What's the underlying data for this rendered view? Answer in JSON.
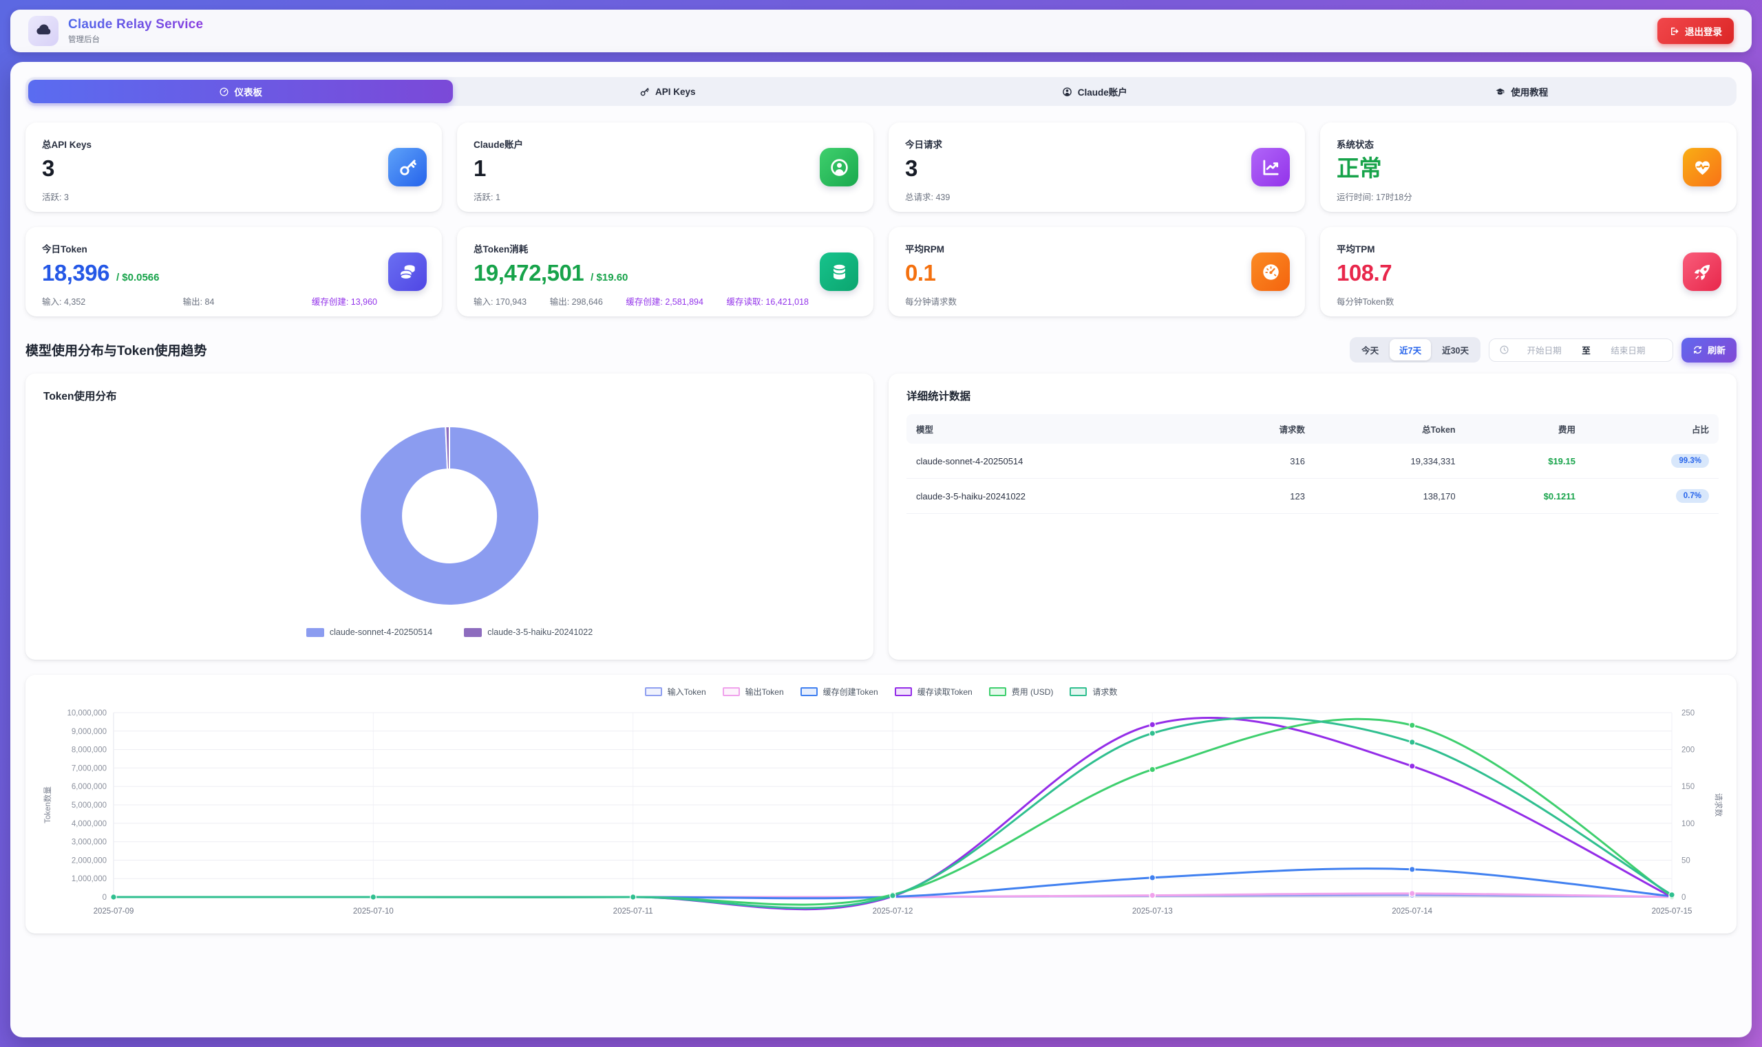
{
  "app": {
    "title": "Claude Relay Service",
    "subtitle": "管理后台",
    "logout_label": "退出登录"
  },
  "tabs": [
    {
      "label": "仪表板",
      "icon": "speedometer-icon",
      "active": true
    },
    {
      "label": "API Keys",
      "icon": "key-icon",
      "active": false
    },
    {
      "label": "Claude账户",
      "icon": "user-circle-icon",
      "active": false
    },
    {
      "label": "使用教程",
      "icon": "book-icon",
      "active": false
    }
  ],
  "stat_cards": [
    {
      "key": "api-keys",
      "label": "总API Keys",
      "value": "3",
      "value_color": "#161b26",
      "subs": [
        {
          "text": "活跃: 3"
        }
      ],
      "icon": "key-icon",
      "icon_bg": "linear-gradient(135deg,#5ea2f9,#2563eb)",
      "icon_accent": "#3b82f6"
    },
    {
      "key": "claude-accounts",
      "label": "Claude账户",
      "value": "1",
      "value_color": "#161b26",
      "subs": [
        {
          "text": "活跃: 1"
        }
      ],
      "icon": "user-circle-icon",
      "icon_bg": "linear-gradient(135deg,#3fd06d,#1aa94e)",
      "icon_accent": "#2dbd5d"
    },
    {
      "key": "requests-today",
      "label": "今日请求",
      "value": "3",
      "value_color": "#161b26",
      "subs": [
        {
          "text": "总请求: 439"
        }
      ],
      "icon": "chart-line-icon",
      "icon_bg": "linear-gradient(135deg,#b065f8,#9333ea)",
      "icon_accent": "#a34df2"
    },
    {
      "key": "system-status",
      "label": "系统状态",
      "value": "正常",
      "value_color": "#17a34a",
      "subs": [
        {
          "text": "运行时间: 17时18分"
        }
      ],
      "icon": "heart-pulse-icon",
      "icon_bg": "linear-gradient(135deg,#f9ae15,#f97316)",
      "icon_accent": "#f89110"
    },
    {
      "key": "tokens-today",
      "label": "今日Token",
      "value": "18,396",
      "value_color": "#2457e6",
      "value_suffix": "/ $0.0566",
      "subs": [
        {
          "text": "输入: 4,352"
        },
        {
          "text": "输出: 84"
        },
        {
          "text": "缓存创建: 13,960",
          "color": "#9333ea"
        }
      ],
      "icon": "coins-icon",
      "icon_bg": "linear-gradient(135deg,#6a6ff2,#5046e4)",
      "icon_accent": "#5a5ceb"
    },
    {
      "key": "tokens-total",
      "label": "总Token消耗",
      "value": "19,472,501",
      "value_color": "#17a34a",
      "value_suffix": "/ $19.60",
      "subs": [
        {
          "text": "输入: 170,943"
        },
        {
          "text": "输出: 298,646"
        },
        {
          "text": "缓存创建: 2,581,894",
          "color": "#9333ea"
        },
        {
          "text": "缓存读取: 16,421,018",
          "color": "#9333ea"
        }
      ],
      "icon": "database-icon",
      "icon_bg": "linear-gradient(135deg,#17c38c,#0ba56f)",
      "icon_accent": "#10b47c"
    },
    {
      "key": "avg-rpm",
      "label": "平均RPM",
      "value": "0.1",
      "value_color": "#f4700e",
      "subs": [
        {
          "text": "每分钟请求数"
        }
      ],
      "icon": "gauge-icon",
      "icon_bg": "linear-gradient(135deg,#fb8b24,#f4640e)",
      "icon_accent": "#f87818"
    },
    {
      "key": "avg-tpm",
      "label": "平均TPM",
      "value": "108.7",
      "value_color": "#e8274b",
      "subs": [
        {
          "text": "每分钟Token数"
        }
      ],
      "icon": "rocket-icon",
      "icon_bg": "linear-gradient(135deg,#f95d7b,#e8274b)",
      "icon_accent": "#f04463"
    }
  ],
  "section": {
    "title": "模型使用分布与Token使用趋势",
    "range_buttons": [
      {
        "label": "今天",
        "active": false
      },
      {
        "label": "近7天",
        "active": true
      },
      {
        "label": "近30天",
        "active": false
      }
    ],
    "date_start_placeholder": "开始日期",
    "date_separator": "至",
    "date_end_placeholder": "结束日期",
    "refresh_label": "刷新"
  },
  "pie_card": {
    "title": "Token使用分布"
  },
  "table_card": {
    "title": "详细统计数据",
    "headers": [
      "模型",
      "请求数",
      "总Token",
      "费用",
      "占比"
    ],
    "rows": [
      {
        "model": "claude-sonnet-4-20250514",
        "requests": "316",
        "tokens": "19,334,331",
        "cost": "$19.15",
        "share": "99.3%"
      },
      {
        "model": "claude-3-5-haiku-20241022",
        "requests": "123",
        "tokens": "138,170",
        "cost": "$0.1211",
        "share": "0.7%"
      }
    ]
  },
  "chart_data": [
    {
      "type": "pie",
      "style": "donut",
      "title": "Token使用分布",
      "labels": [
        "claude-sonnet-4-20250514",
        "claude-3-5-haiku-20241022"
      ],
      "values": [
        99.3,
        0.7
      ],
      "unit": "percent",
      "colors": [
        "#8b9cf0",
        "#8d6cbe"
      ],
      "legend_position": "bottom"
    },
    {
      "type": "line",
      "x": [
        "2025-07-09",
        "2025-07-10",
        "2025-07-11",
        "2025-07-12",
        "2025-07-13",
        "2025-07-14",
        "2025-07-15"
      ],
      "y_left": {
        "label": "Token数量",
        "min": 0,
        "max": 10000000,
        "tick_step": 1000000
      },
      "y_right": {
        "label": "请求数",
        "min": 0,
        "max": 250,
        "tick_step": 50
      },
      "grid": true,
      "legend_position": "top",
      "series": [
        {
          "name": "输入Token",
          "color": "#8f9ff0",
          "axis": "left",
          "values": [
            0,
            0,
            0,
            800,
            60000,
            100000,
            9000
          ]
        },
        {
          "name": "输出Token",
          "color": "#f0a2ec",
          "axis": "left",
          "values": [
            0,
            0,
            0,
            900,
            90000,
            190000,
            8000
          ]
        },
        {
          "name": "缓存创建Token",
          "color": "#4080f0",
          "axis": "left",
          "values": [
            0,
            0,
            0,
            15000,
            1050000,
            1500000,
            42000
          ]
        },
        {
          "name": "缓存读取Token",
          "color": "#942de8",
          "axis": "left",
          "values": [
            0,
            0,
            0,
            40000,
            9350000,
            7100000,
            5000
          ]
        },
        {
          "name": "费用 (USD)",
          "color": "#3ecf6e",
          "axis": "cost",
          "hidden_axis_max": 12,
          "values": [
            0,
            0,
            0,
            0.15,
            8.3,
            11.18,
            0.06
          ]
        },
        {
          "name": "请求数",
          "color": "#2fbf8f",
          "axis": "right",
          "values": [
            0,
            0,
            0,
            2,
            222,
            210,
            3
          ]
        }
      ]
    }
  ]
}
